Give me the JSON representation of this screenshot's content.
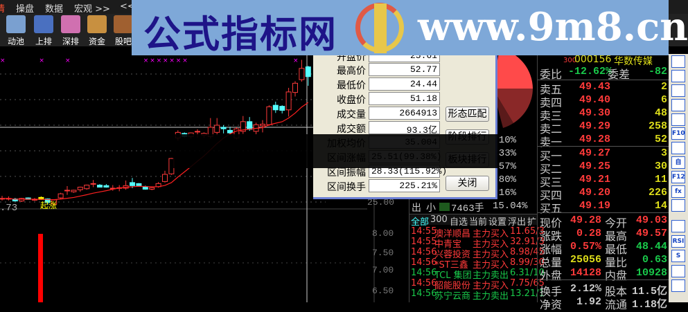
{
  "menu": {
    "items": [
      "情",
      "操盘",
      "数据",
      "宏观 >>",
      "<<"
    ]
  },
  "toolbar": {
    "items": [
      {
        "label": "动池",
        "icon": "pool-chart-icon",
        "color": "#7aa0d0"
      },
      {
        "label": "上排",
        "icon": "shanghai-rank-icon",
        "color": "#4a70c0"
      },
      {
        "label": "深排",
        "icon": "shenzhen-rank-icon",
        "color": "#d070b0"
      },
      {
        "label": "资金",
        "icon": "money-box-icon",
        "color": "#c89040"
      },
      {
        "label": "股吧",
        "icon": "users-icon",
        "color": "#a06030"
      }
    ]
  },
  "banner": {
    "title": "公式指标网",
    "url": "www.9m8.cn"
  },
  "chart": {
    "price_ticks": [
      "25.00"
    ],
    "low_label": ".73",
    "signal_label": "起涨",
    "volume_ticks": [
      "8.00",
      "7.50",
      "7.00",
      "6.50"
    ],
    "colors": {
      "up": "#ff3a3a",
      "down": "#55ffff",
      "signal": "#ffff00",
      "ma": "#ff2020",
      "marker": "#ff00ff"
    },
    "candles": [
      [
        25.7,
        26.2,
        25.3,
        25.7,
        1
      ],
      [
        25.7,
        26.1,
        25.3,
        25.7,
        0
      ],
      [
        25.6,
        25.8,
        25.1,
        25.2,
        0
      ],
      [
        25.2,
        25.8,
        25.0,
        25.7,
        0
      ],
      [
        25.8,
        25.9,
        25.5,
        25.5,
        0
      ],
      [
        25.5,
        25.8,
        25.2,
        25.5,
        0
      ],
      [
        25.9,
        26.1,
        25.4,
        25.5,
        1
      ],
      [
        25.6,
        25.7,
        24.44,
        24.9,
        0
      ],
      [
        24.6,
        25.5,
        24.5,
        25.4,
        0
      ],
      [
        25.8,
        26.8,
        25.6,
        26.6,
        0
      ],
      [
        27.3,
        28.1,
        26.4,
        27.3,
        1
      ],
      [
        27.0,
        27.4,
        26.8,
        27.3,
        0
      ],
      [
        27.4,
        28.0,
        27.0,
        27.9,
        0
      ],
      [
        27.6,
        28.4,
        27.4,
        28.3,
        0
      ],
      [
        28.6,
        29.3,
        27.9,
        28.6,
        0
      ],
      [
        28.3,
        28.5,
        27.9,
        27.9,
        0
      ],
      [
        28.2,
        28.5,
        27.8,
        27.9,
        0
      ],
      [
        27.7,
        28.3,
        27.2,
        27.7,
        0
      ],
      [
        27.8,
        28.3,
        27.1,
        27.8,
        0
      ],
      [
        27.7,
        29.2,
        27.4,
        28.2,
        0
      ],
      [
        28.8,
        29.7,
        27.7,
        28.2,
        0
      ],
      [
        28.6,
        28.7,
        28.1,
        28.2,
        0
      ],
      [
        27.9,
        28.2,
        27.4,
        27.5,
        1
      ],
      [
        27.5,
        27.9,
        27.3,
        27.8,
        1
      ],
      [
        28.0,
        28.9,
        27.8,
        28.6,
        1
      ],
      [
        29.0,
        31.1,
        28.8,
        30.4,
        1
      ],
      [
        30.5,
        33.6,
        30.3,
        33.5,
        1
      ],
      [
        37.5,
        39.0,
        37.0,
        38.6,
        1
      ],
      [
        38.4,
        38.6,
        37.6,
        37.8,
        1
      ],
      [
        37.8,
        38.6,
        37.4,
        38.5,
        0
      ],
      [
        38.8,
        39.2,
        37.6,
        38.8,
        0
      ],
      [
        38.0,
        38.6,
        37.5,
        38.4,
        0
      ],
      [
        37.8,
        41.4,
        37.4,
        39.6,
        0
      ],
      [
        38.6,
        41.4,
        38.0,
        40.0,
        0
      ],
      [
        39.6,
        40.0,
        38.4,
        39.3,
        0
      ],
      [
        39.0,
        39.7,
        38.3,
        38.5,
        0
      ],
      [
        37.5,
        39.6,
        37.2,
        39.3,
        0
      ],
      [
        38.8,
        41.8,
        38.3,
        40.7,
        0
      ],
      [
        40.7,
        41.6,
        38.9,
        39.2,
        0
      ],
      [
        38.8,
        40.5,
        38.2,
        40.1,
        0
      ],
      [
        39.9,
        41.0,
        38.6,
        40.2,
        0
      ],
      [
        40.1,
        43.9,
        39.9,
        43.6,
        0
      ],
      [
        43.9,
        44.6,
        42.4,
        43.0,
        0
      ],
      [
        43.7,
        43.9,
        42.3,
        42.9,
        0
      ],
      [
        43.0,
        47.3,
        41.7,
        46.5,
        0
      ],
      [
        46.4,
        48.6,
        45.6,
        48.2,
        1
      ],
      [
        48.9,
        52.77,
        48.5,
        51.1,
        0
      ],
      [
        51.4,
        51.6,
        47.7,
        49.5,
        0
      ]
    ]
  },
  "dialog": {
    "rows": [
      {
        "label": "开盘价",
        "value": "25.61"
      },
      {
        "label": "最高价",
        "value": "52.77"
      },
      {
        "label": "最低价",
        "value": "24.44"
      },
      {
        "label": "收盘价",
        "value": "51.18"
      },
      {
        "label": "成交量",
        "value": "2664913"
      },
      {
        "label": "成交额",
        "value": "93.3亿"
      },
      {
        "label": "加权均价",
        "value": "35.004"
      },
      {
        "label": "区间涨幅",
        "value": "25.51(99.38%)"
      },
      {
        "label": "区间振幅",
        "value": "28.33(115.92%)"
      },
      {
        "label": "区间换手",
        "value": "225.21%"
      }
    ],
    "buttons": [
      "形态匹配",
      "阶段排行",
      "板块排行",
      "关闭"
    ]
  },
  "mid": {
    "pcts": [
      ".10%",
      ".33%",
      ".57%",
      "0.80%",
      ".16%"
    ],
    "flow": {
      "dir": "出",
      "size": "小",
      "volume": "7463手",
      "pct": "15.04%",
      "bar_color": "#1e5a1e"
    },
    "tabs": [
      "全部",
      "300",
      "自选",
      "当前",
      "设置",
      "浮出",
      "扩"
    ],
    "ticker": [
      {
        "time": "14:55",
        "name": "澳洋顺昌",
        "type": "主力买入",
        "price": "11.65/3",
        "dir": "up"
      },
      {
        "time": "14:55",
        "name": "中青宝",
        "type": "主力买入",
        "price": "32.91/3",
        "dir": "up"
      },
      {
        "time": "14:56",
        "name": "兴蓉投资",
        "type": "主力买入",
        "price": "8.98/45",
        "dir": "up"
      },
      {
        "time": "14:56",
        "name": "*ST三鑫",
        "type": "主力买入",
        "price": "8.99/30",
        "dir": "up"
      },
      {
        "time": "14:56",
        "name": "TCL 集团",
        "type": "主力卖出",
        "price": "6.31/10",
        "dir": "down"
      },
      {
        "time": "14:56",
        "name": "韶能股份",
        "type": "主力买入",
        "price": "7.75/65",
        "dir": "up"
      },
      {
        "time": "14:56",
        "name": "苏宁云商",
        "type": "主力卖出",
        "price": "13.21/1",
        "dir": "down"
      }
    ]
  },
  "quote": {
    "board": "300",
    "code": "000156",
    "name": "华数传媒",
    "weibi_label": "委比",
    "weibi": "-12.62%",
    "weicha_label": "委差",
    "weicha": "-82",
    "sells": [
      {
        "label": "卖五",
        "price": "49.43",
        "vol": "2"
      },
      {
        "label": "卖四",
        "price": "49.40",
        "vol": "6"
      },
      {
        "label": "卖三",
        "price": "49.30",
        "vol": "48"
      },
      {
        "label": "卖二",
        "price": "49.29",
        "vol": "258"
      },
      {
        "label": "卖一",
        "price": "49.28",
        "vol": "52"
      }
    ],
    "buys": [
      {
        "label": "买一",
        "price": "49.27",
        "vol": "3"
      },
      {
        "label": "买二",
        "price": "49.25",
        "vol": "30"
      },
      {
        "label": "买三",
        "price": "49.21",
        "vol": "11"
      },
      {
        "label": "买四",
        "price": "49.20",
        "vol": "226"
      },
      {
        "label": "买五",
        "price": "49.19",
        "vol": "14"
      }
    ],
    "stats": [
      {
        "l1": "现价",
        "v1": "49.28",
        "c1": "r",
        "l2": "今开",
        "v2": "49.03",
        "c2": "r"
      },
      {
        "l1": "涨跌",
        "v1": "0.28",
        "c1": "r",
        "l2": "最高",
        "v2": "49.57",
        "c2": "r"
      },
      {
        "l1": "涨幅",
        "v1": "0.57%",
        "c1": "r",
        "l2": "最低",
        "v2": "48.44",
        "c2": "g"
      },
      {
        "l1": "总量",
        "v1": "25056",
        "c1": "y",
        "l2": "量比",
        "v2": "0.63",
        "c2": "g"
      },
      {
        "l1": "外盘",
        "v1": "14128",
        "c1": "r",
        "l2": "内盘",
        "v2": "10928",
        "c2": "g"
      },
      {
        "l1": "换手",
        "v1": "2.12%",
        "c1": "w",
        "l2": "股本",
        "v2": "11.5亿",
        "c2": "w"
      },
      {
        "l1": "净资",
        "v1": "1.92",
        "c1": "w",
        "l2": "流通",
        "v2": "1.18亿",
        "c2": "w"
      }
    ]
  },
  "side": {
    "icons": [
      "settings-icon",
      "report-icon",
      "line-chart-icon",
      "candle-icon",
      "window-icon",
      "F10",
      "tree-icon",
      "自",
      "F12",
      "fx",
      "zoom-icon",
      "wave-icon",
      "RSI",
      "S",
      "move-icon",
      "arrow-icon"
    ]
  }
}
